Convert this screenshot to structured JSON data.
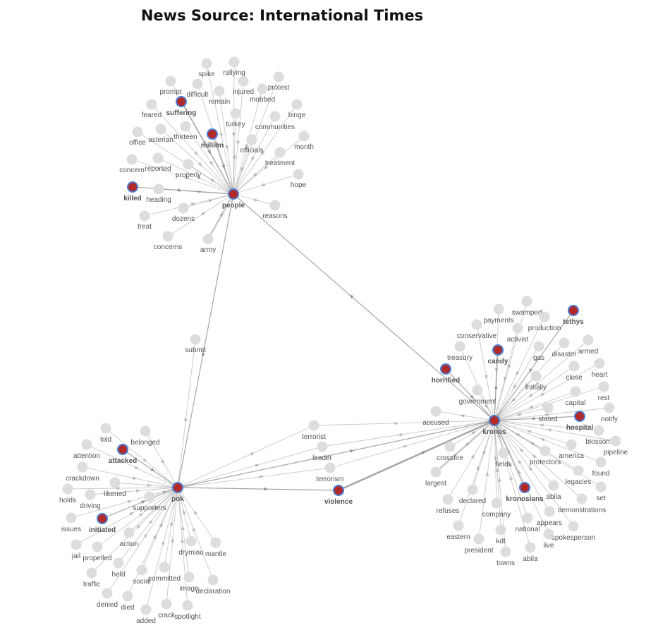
{
  "title": "News Source: International Times",
  "colors": {
    "hub_fill": "#b02a2a",
    "hub_stroke": "#4a7fd6",
    "node_fill": "#dddddd",
    "edge": "#888888"
  },
  "nodes": [
    {
      "id": "people",
      "label": "people",
      "hub": true
    },
    {
      "id": "pok",
      "label": "pok",
      "hub": true
    },
    {
      "id": "kronos",
      "label": "kronos",
      "hub": true
    },
    {
      "id": "suffering",
      "label": "suffering",
      "hub": true
    },
    {
      "id": "million",
      "label": "million",
      "hub": true
    },
    {
      "id": "killed",
      "label": "killed",
      "hub": true
    },
    {
      "id": "attacked",
      "label": "attacked",
      "hub": true
    },
    {
      "id": "initiated",
      "label": "initiated",
      "hub": true
    },
    {
      "id": "violence",
      "label": "violence",
      "hub": true
    },
    {
      "id": "horrified",
      "label": "horrified",
      "hub": true
    },
    {
      "id": "candy",
      "label": "candy",
      "hub": true
    },
    {
      "id": "tethys",
      "label": "tethys",
      "hub": true
    },
    {
      "id": "hospital",
      "label": "hospital",
      "hub": true
    },
    {
      "id": "kronosians",
      "label": "kronosians",
      "hub": true
    },
    {
      "id": "spike",
      "label": "spike"
    },
    {
      "id": "rallying",
      "label": "rallying"
    },
    {
      "id": "prompt",
      "label": "prompt"
    },
    {
      "id": "difficult",
      "label": "difficult"
    },
    {
      "id": "injured",
      "label": "injured"
    },
    {
      "id": "protest",
      "label": "protest"
    },
    {
      "id": "remain",
      "label": "remain"
    },
    {
      "id": "mobbed",
      "label": "mobbed"
    },
    {
      "id": "feared",
      "label": "feared"
    },
    {
      "id": "turkey",
      "label": "turkey"
    },
    {
      "id": "binge",
      "label": "binge"
    },
    {
      "id": "communities",
      "label": "communities"
    },
    {
      "id": "office",
      "label": "office"
    },
    {
      "id": "asterian",
      "label": "asterian"
    },
    {
      "id": "thirteen",
      "label": "thirteen"
    },
    {
      "id": "officials",
      "label": "officials"
    },
    {
      "id": "month",
      "label": "month"
    },
    {
      "id": "concern",
      "label": "concern"
    },
    {
      "id": "reported",
      "label": "reported"
    },
    {
      "id": "treatment",
      "label": "treatment"
    },
    {
      "id": "properly",
      "label": "properly"
    },
    {
      "id": "hope",
      "label": "hope"
    },
    {
      "id": "heading",
      "label": "heading"
    },
    {
      "id": "reasons",
      "label": "reasons"
    },
    {
      "id": "dozens",
      "label": "dozens"
    },
    {
      "id": "treat",
      "label": "treat"
    },
    {
      "id": "concerns",
      "label": "concerns"
    },
    {
      "id": "army",
      "label": "army"
    },
    {
      "id": "submit",
      "label": "submit"
    },
    {
      "id": "told",
      "label": "told"
    },
    {
      "id": "belonged",
      "label": "belonged"
    },
    {
      "id": "attention",
      "label": "attention"
    },
    {
      "id": "crackdown",
      "label": "crackdown"
    },
    {
      "id": "holds",
      "label": "holds"
    },
    {
      "id": "likened",
      "label": "likened"
    },
    {
      "id": "driving",
      "label": "driving"
    },
    {
      "id": "supporters",
      "label": "supporters"
    },
    {
      "id": "issues",
      "label": "issues"
    },
    {
      "id": "action",
      "label": "action"
    },
    {
      "id": "jail",
      "label": "jail"
    },
    {
      "id": "propelled",
      "label": "propelled"
    },
    {
      "id": "held",
      "label": "held"
    },
    {
      "id": "drymiau",
      "label": "drymiau"
    },
    {
      "id": "mantle",
      "label": "mantle"
    },
    {
      "id": "traffic",
      "label": "traffic"
    },
    {
      "id": "social",
      "label": "social"
    },
    {
      "id": "committed",
      "label": "committed"
    },
    {
      "id": "image",
      "label": "image"
    },
    {
      "id": "declaration",
      "label": "declaration"
    },
    {
      "id": "denied",
      "label": "denied"
    },
    {
      "id": "died",
      "label": "died"
    },
    {
      "id": "added",
      "label": "added"
    },
    {
      "id": "crack",
      "label": "crack"
    },
    {
      "id": "spotlight",
      "label": "spotlight"
    },
    {
      "id": "terrorist",
      "label": "terrorist"
    },
    {
      "id": "leader",
      "label": "leader"
    },
    {
      "id": "terrorism",
      "label": "terrorism"
    },
    {
      "id": "accused",
      "label": "accused"
    },
    {
      "id": "swamped",
      "label": "swamped"
    },
    {
      "id": "payments",
      "label": "payments"
    },
    {
      "id": "production",
      "label": "production"
    },
    {
      "id": "conservative",
      "label": "conservative"
    },
    {
      "id": "activist",
      "label": "activist"
    },
    {
      "id": "armed",
      "label": "armed"
    },
    {
      "id": "disaster",
      "label": "disaster"
    },
    {
      "id": "treasury",
      "label": "treasury"
    },
    {
      "id": "gas",
      "label": "gas"
    },
    {
      "id": "heart",
      "label": "heart"
    },
    {
      "id": "close",
      "label": "close"
    },
    {
      "id": "initially",
      "label": "initially"
    },
    {
      "id": "rest",
      "label": "rest"
    },
    {
      "id": "government",
      "label": "government"
    },
    {
      "id": "capital",
      "label": "capital"
    },
    {
      "id": "notify",
      "label": "notify"
    },
    {
      "id": "stated",
      "label": "stated"
    },
    {
      "id": "blossom",
      "label": "blossom"
    },
    {
      "id": "pipeline",
      "label": "pipeline"
    },
    {
      "id": "crossfire",
      "label": "crossfire"
    },
    {
      "id": "protectors",
      "label": "protectors"
    },
    {
      "id": "america",
      "label": "america"
    },
    {
      "id": "found",
      "label": "found"
    },
    {
      "id": "fields",
      "label": "fields"
    },
    {
      "id": "largest",
      "label": "largest"
    },
    {
      "id": "legacies",
      "label": "legacies"
    },
    {
      "id": "declared",
      "label": "declared"
    },
    {
      "id": "abila",
      "label": "abila"
    },
    {
      "id": "set",
      "label": "set"
    },
    {
      "id": "refuses",
      "label": "refuses"
    },
    {
      "id": "demonstrations",
      "label": "demonstrations"
    },
    {
      "id": "company",
      "label": "company"
    },
    {
      "id": "appears",
      "label": "appears"
    },
    {
      "id": "national",
      "label": "national"
    },
    {
      "id": "eastern",
      "label": "eastern"
    },
    {
      "id": "spokesperson",
      "label": "spokesperson"
    },
    {
      "id": "kdt",
      "label": "kdt"
    },
    {
      "id": "president",
      "label": "president"
    },
    {
      "id": "live",
      "label": "live"
    },
    {
      "id": "towns",
      "label": "towns"
    },
    {
      "id": "abila2",
      "label": "abila"
    }
  ],
  "edges": [
    [
      "spike",
      "people"
    ],
    [
      "rallying",
      "people"
    ],
    [
      "prompt",
      "people"
    ],
    [
      "difficult",
      "people"
    ],
    [
      "injured",
      "people"
    ],
    [
      "protest",
      "people"
    ],
    [
      "remain",
      "people"
    ],
    [
      "mobbed",
      "people"
    ],
    [
      "feared",
      "people"
    ],
    [
      "turkey",
      "people"
    ],
    [
      "binge",
      "people"
    ],
    [
      "communities",
      "people"
    ],
    [
      "office",
      "people"
    ],
    [
      "asterian",
      "people"
    ],
    [
      "thirteen",
      "people"
    ],
    [
      "officials",
      "people"
    ],
    [
      "month",
      "people"
    ],
    [
      "concern",
      "people"
    ],
    [
      "reported",
      "people"
    ],
    [
      "treatment",
      "people"
    ],
    [
      "properly",
      "people"
    ],
    [
      "hope",
      "people"
    ],
    [
      "heading",
      "people"
    ],
    [
      "dozens",
      "people"
    ],
    [
      "treat",
      "people"
    ],
    [
      "concerns",
      "people"
    ],
    [
      "suffering",
      "people"
    ],
    [
      "million",
      "people"
    ],
    [
      "people",
      "reasons"
    ],
    [
      "people",
      "killed"
    ],
    [
      "army",
      "people"
    ],
    [
      "people",
      "pok"
    ],
    [
      "submit",
      "pok"
    ],
    [
      "kronos",
      "people"
    ],
    [
      "told",
      "pok"
    ],
    [
      "belonged",
      "pok"
    ],
    [
      "attention",
      "pok"
    ],
    [
      "crackdown",
      "pok"
    ],
    [
      "pok",
      "holds"
    ],
    [
      "likened",
      "pok"
    ],
    [
      "driving",
      "pok"
    ],
    [
      "supporters",
      "pok"
    ],
    [
      "issues",
      "pok"
    ],
    [
      "action",
      "pok"
    ],
    [
      "jail",
      "pok"
    ],
    [
      "propelled",
      "pok"
    ],
    [
      "held",
      "pok"
    ],
    [
      "drymiau",
      "pok"
    ],
    [
      "mantle",
      "pok"
    ],
    [
      "traffic",
      "pok"
    ],
    [
      "social",
      "pok"
    ],
    [
      "committed",
      "pok"
    ],
    [
      "image",
      "pok"
    ],
    [
      "declaration",
      "pok"
    ],
    [
      "denied",
      "pok"
    ],
    [
      "died",
      "pok"
    ],
    [
      "added",
      "pok"
    ],
    [
      "crack",
      "pok"
    ],
    [
      "spotlight",
      "pok"
    ],
    [
      "attacked",
      "pok"
    ],
    [
      "initiated",
      "pok"
    ],
    [
      "pok",
      "terrorist"
    ],
    [
      "pok",
      "leader"
    ],
    [
      "pok",
      "terrorism"
    ],
    [
      "pok",
      "violence"
    ],
    [
      "pok",
      "kronos"
    ],
    [
      "violence",
      "kronos"
    ],
    [
      "kronos",
      "terrorist"
    ],
    [
      "kronos",
      "leader"
    ],
    [
      "kronos",
      "terrorism"
    ],
    [
      "kronos",
      "accused"
    ],
    [
      "swamped",
      "kronos"
    ],
    [
      "payments",
      "kronos"
    ],
    [
      "production",
      "kronos"
    ],
    [
      "tethys",
      "kronos"
    ],
    [
      "conservative",
      "kronos"
    ],
    [
      "activist",
      "kronos"
    ],
    [
      "candy",
      "kronos"
    ],
    [
      "armed",
      "kronos"
    ],
    [
      "disaster",
      "kronos"
    ],
    [
      "treasury",
      "kronos"
    ],
    [
      "gas",
      "kronos"
    ],
    [
      "heart",
      "kronos"
    ],
    [
      "close",
      "kronos"
    ],
    [
      "horrified",
      "kronos"
    ],
    [
      "initially",
      "kronos"
    ],
    [
      "rest",
      "kronos"
    ],
    [
      "government",
      "kronos"
    ],
    [
      "capital",
      "kronos"
    ],
    [
      "notify",
      "kronos"
    ],
    [
      "stated",
      "kronos"
    ],
    [
      "hospital",
      "kronos"
    ],
    [
      "blossom",
      "kronos"
    ],
    [
      "pipeline",
      "kronos"
    ],
    [
      "crossfire",
      "kronos"
    ],
    [
      "protectors",
      "kronos"
    ],
    [
      "america",
      "kronos"
    ],
    [
      "found",
      "kronos"
    ],
    [
      "fields",
      "kronos"
    ],
    [
      "largest",
      "kronos"
    ],
    [
      "legacies",
      "kronos"
    ],
    [
      "declared",
      "kronos"
    ],
    [
      "abila",
      "kronos"
    ],
    [
      "set",
      "kronos"
    ],
    [
      "kronosians",
      "kronos"
    ],
    [
      "refuses",
      "kronos"
    ],
    [
      "demonstrations",
      "kronos"
    ],
    [
      "company",
      "kronos"
    ],
    [
      "appears",
      "kronos"
    ],
    [
      "national",
      "kronos"
    ],
    [
      "eastern",
      "kronos"
    ],
    [
      "spokesperson",
      "kronos"
    ],
    [
      "kdt",
      "kronos"
    ],
    [
      "president",
      "kronos"
    ],
    [
      "live",
      "kronos"
    ],
    [
      "towns",
      "kronos"
    ],
    [
      "abila2",
      "kronos"
    ]
  ]
}
